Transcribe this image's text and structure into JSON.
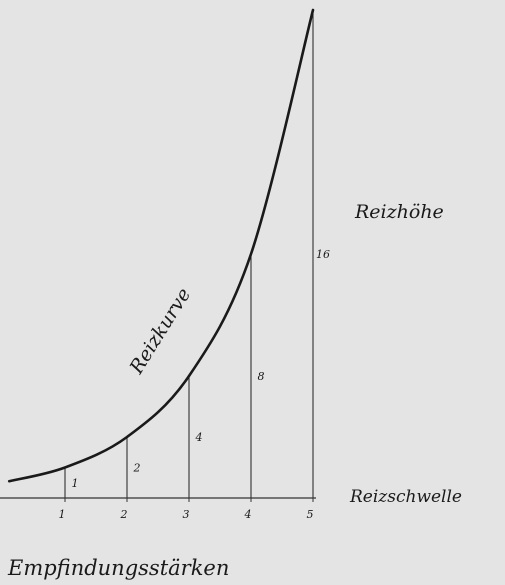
{
  "chart_data": {
    "type": "line",
    "curve_label": "Reizkurve",
    "y_label": "Reizhöhe",
    "x_axis_label": "Reizschwelle",
    "bottom_label": "Empfindungsstärken",
    "series": [
      {
        "name": "Reizkurve",
        "color": "#1a1a1a",
        "x": [
          0.1,
          1,
          2,
          3,
          4,
          5
        ],
        "values": [
          0.55,
          1,
          2,
          4,
          8,
          16
        ]
      }
    ],
    "stems": {
      "x": [
        1,
        2,
        3,
        4,
        5
      ],
      "values": [
        1,
        2,
        4,
        8,
        16
      ]
    },
    "xlim": [
      0,
      5
    ],
    "ylim": [
      0,
      16
    ],
    "xticks": [
      1,
      2,
      3,
      4,
      5
    ]
  }
}
